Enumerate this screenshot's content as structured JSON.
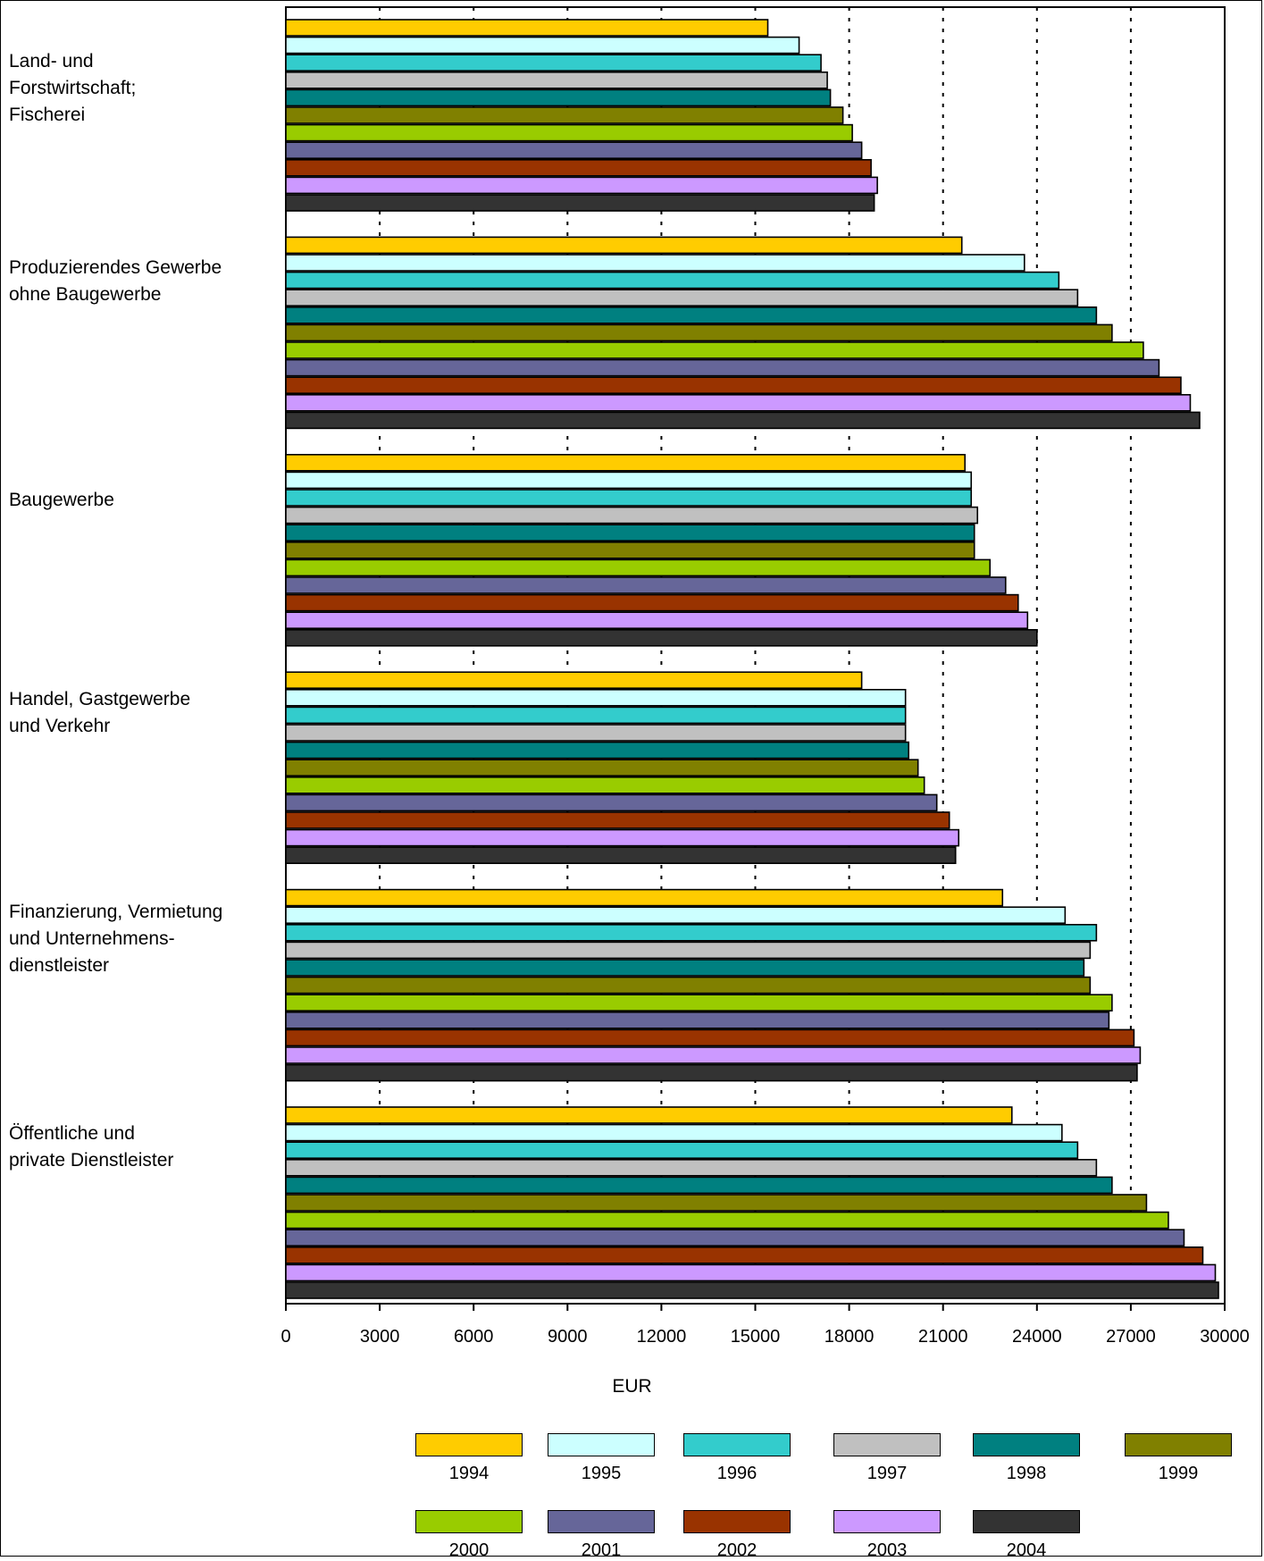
{
  "chart_data": {
    "type": "bar",
    "orientation": "horizontal",
    "categories": [
      "Land- und\nForstwirtschaft;\nFischerei",
      "Produzierendes Gewerbe\nohne Baugewerbe",
      "Baugewerbe",
      "Handel, Gastgewerbe\nund Verkehr",
      "Finanzierung, Vermietung\nund Unternehmens-\ndienstleister",
      "Öffentliche und\nprivate Dienstleister"
    ],
    "series": [
      {
        "name": "1994",
        "color": "#FFCC00",
        "values": [
          15400,
          21600,
          21700,
          18400,
          22900,
          23200
        ]
      },
      {
        "name": "1995",
        "color": "#CCFFFF",
        "values": [
          16400,
          23600,
          21900,
          19800,
          24900,
          24800
        ]
      },
      {
        "name": "1996",
        "color": "#33CCCC",
        "values": [
          17100,
          24700,
          21900,
          19800,
          25900,
          25300
        ]
      },
      {
        "name": "1997",
        "color": "#C0C0C0",
        "values": [
          17300,
          25300,
          22100,
          19800,
          25700,
          25900
        ]
      },
      {
        "name": "1998",
        "color": "#008080",
        "values": [
          17400,
          25900,
          22000,
          19900,
          25500,
          26400
        ]
      },
      {
        "name": "1999",
        "color": "#808000",
        "values": [
          17800,
          26400,
          22000,
          20200,
          25700,
          27500
        ]
      },
      {
        "name": "2000",
        "color": "#99CC00",
        "values": [
          18100,
          27400,
          22500,
          20400,
          26400,
          28200
        ]
      },
      {
        "name": "2001",
        "color": "#666699",
        "values": [
          18400,
          27900,
          23000,
          20800,
          26300,
          28700
        ]
      },
      {
        "name": "2002",
        "color": "#993300",
        "values": [
          18700,
          28600,
          23400,
          21200,
          27100,
          29300
        ]
      },
      {
        "name": "2003",
        "color": "#CC99FF",
        "values": [
          18900,
          28900,
          23700,
          21500,
          27300,
          29700
        ]
      },
      {
        "name": "2004",
        "color": "#333333",
        "values": [
          18800,
          29200,
          24000,
          21400,
          27200,
          29800
        ]
      }
    ],
    "xlabel": "EUR",
    "xlim": [
      0,
      30000
    ],
    "xticks": [
      "0",
      "3000",
      "6000",
      "9000",
      "12000",
      "15000",
      "18000",
      "21000",
      "24000",
      "27000",
      "30000"
    ],
    "grid": "vertical dotted",
    "legend": "bottom"
  }
}
